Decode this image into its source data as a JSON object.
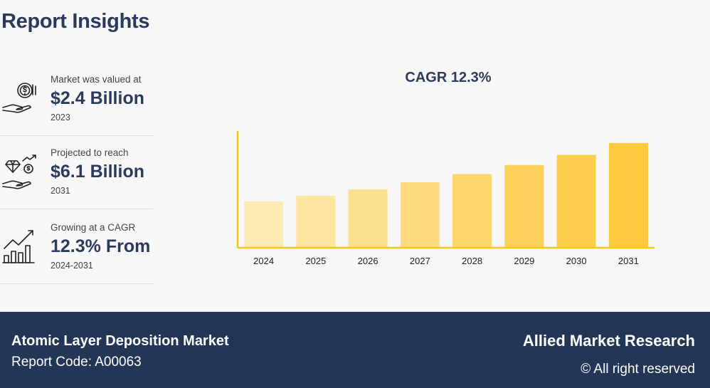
{
  "header": {
    "title": "Report Insights"
  },
  "stats": [
    {
      "caption": "Market was valued at",
      "value": "$2.4 Billion",
      "sub": "2023",
      "icon": "money-hand-icon"
    },
    {
      "caption": "Projected to reach",
      "value": "$6.1 Billion",
      "sub": "2031",
      "icon": "diamond-growth-icon"
    },
    {
      "caption": "Growing at a CAGR",
      "value": "12.3% From",
      "sub": "2024-2031",
      "icon": "growth-chart-icon"
    }
  ],
  "chart_data": {
    "type": "bar",
    "title": "CAGR 12.3%",
    "categories": [
      "2024",
      "2025",
      "2026",
      "2027",
      "2028",
      "2029",
      "2030",
      "2031"
    ],
    "values": [
      2.7,
      3.03,
      3.4,
      3.82,
      4.29,
      4.82,
      5.41,
      6.1
    ],
    "xlabel": "",
    "ylabel": "",
    "ylim": [
      0,
      6.8
    ],
    "grid": false,
    "colors": [
      "#fde9b4",
      "#fde4a0",
      "#fde08f",
      "#fddb7e",
      "#fdd66c",
      "#fdd15b",
      "#fdcd4c",
      "#fdc93e"
    ],
    "axis_color": "#f5c518"
  },
  "footer": {
    "market": "Atomic Layer Deposition Market",
    "report_code": "Report Code: A00063",
    "brand": "Allied Market Research",
    "rights": "© All right reserved"
  }
}
